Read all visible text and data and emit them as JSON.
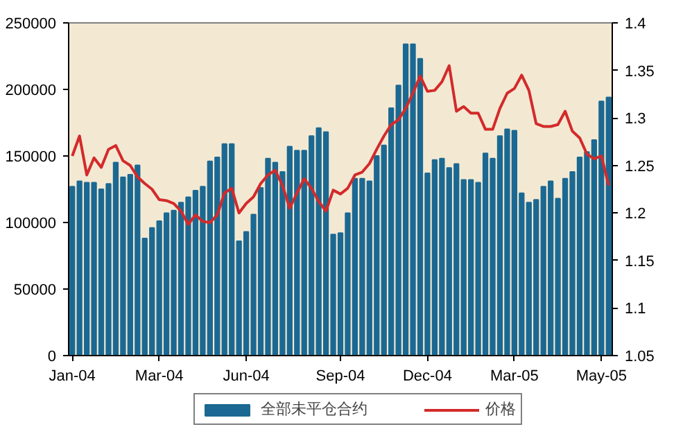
{
  "chart_data": {
    "type": "bar",
    "categories": [
      "Jan-04",
      null,
      null,
      null,
      null,
      null,
      null,
      null,
      null,
      null,
      null,
      null,
      "Mar-04",
      null,
      null,
      null,
      null,
      null,
      null,
      null,
      null,
      null,
      null,
      null,
      "Jun-04",
      null,
      null,
      null,
      null,
      null,
      null,
      null,
      null,
      null,
      null,
      null,
      null,
      "Sep-04",
      null,
      null,
      null,
      null,
      null,
      null,
      null,
      null,
      null,
      null,
      null,
      "Dec-04",
      null,
      null,
      null,
      null,
      null,
      null,
      null,
      null,
      null,
      null,
      null,
      "Mar-05",
      null,
      null,
      null,
      null,
      null,
      null,
      null,
      null,
      null,
      null,
      null,
      "May-05",
      null
    ],
    "series": [
      {
        "name": "全部未平仓合约",
        "color": "#1b6992",
        "values": [
          127000,
          131000,
          130000,
          130000,
          125000,
          129000,
          145000,
          134000,
          136000,
          143000,
          88000,
          96000,
          101000,
          107000,
          109000,
          115000,
          119000,
          124000,
          127000,
          146000,
          149000,
          159000,
          159000,
          86000,
          93000,
          106000,
          126000,
          148000,
          145000,
          138000,
          157000,
          154000,
          154000,
          165000,
          171000,
          168000,
          91000,
          92000,
          107000,
          133000,
          133000,
          131000,
          150000,
          158000,
          186000,
          203000,
          234000,
          234000,
          223000,
          137000,
          147000,
          148000,
          141000,
          144000,
          132000,
          132000,
          130000,
          152000,
          148000,
          165000,
          170000,
          169000,
          122000,
          115000,
          117000,
          127000,
          131000,
          118000,
          133000,
          138000,
          149000,
          153000,
          162000,
          191000,
          194000
        ]
      },
      {
        "name": "价格",
        "type": "line",
        "axis": "y2",
        "color": "#d42a2a",
        "values": [
          1.26,
          1.281,
          1.24,
          1.258,
          1.248,
          1.267,
          1.271,
          1.255,
          1.25,
          1.238,
          1.231,
          1.225,
          1.214,
          1.213,
          1.21,
          1.202,
          1.188,
          1.198,
          1.191,
          1.19,
          1.198,
          1.221,
          1.226,
          1.2,
          1.21,
          1.217,
          1.231,
          1.24,
          1.245,
          1.229,
          1.205,
          1.221,
          1.236,
          1.226,
          1.212,
          1.202,
          1.224,
          1.22,
          1.226,
          1.24,
          1.243,
          1.252,
          1.267,
          1.281,
          1.293,
          1.298,
          1.31,
          1.326,
          1.344,
          1.328,
          1.329,
          1.338,
          1.355,
          1.307,
          1.312,
          1.305,
          1.305,
          1.288,
          1.288,
          1.31,
          1.326,
          1.331,
          1.345,
          1.329,
          1.294,
          1.291,
          1.291,
          1.293,
          1.307,
          1.286,
          1.279,
          1.262,
          1.257,
          1.26,
          1.229
        ]
      }
    ],
    "ylim": [
      0,
      250000
    ],
    "yticks": [
      0,
      50000,
      100000,
      150000,
      200000,
      250000
    ],
    "y2lim": [
      1.05,
      1.4
    ],
    "y2ticks": [
      1.05,
      1.1,
      1.15,
      1.2,
      1.25,
      1.3,
      1.35,
      1.4
    ],
    "legend": "bottom"
  }
}
